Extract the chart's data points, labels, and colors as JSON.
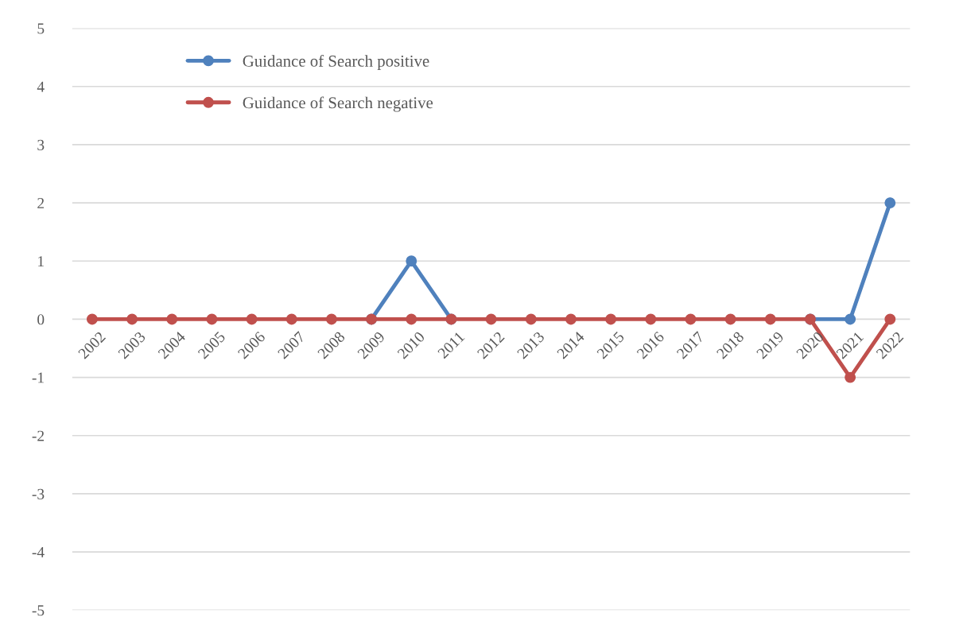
{
  "chart_data": {
    "type": "line",
    "categories": [
      "2002",
      "2003",
      "2004",
      "2005",
      "2006",
      "2007",
      "2008",
      "2009",
      "2010",
      "2011",
      "2012",
      "2013",
      "2014",
      "2015",
      "2016",
      "2017",
      "2018",
      "2019",
      "2020",
      "2021",
      "2022"
    ],
    "series": [
      {
        "name": "Guidance of Search positive",
        "color": "#4f81bd",
        "values": [
          null,
          null,
          null,
          null,
          null,
          null,
          null,
          0,
          1,
          0,
          null,
          null,
          null,
          null,
          null,
          null,
          null,
          null,
          0,
          0,
          2
        ]
      },
      {
        "name": "Guidance of Search negative",
        "color": "#c0504d",
        "values": [
          0,
          0,
          0,
          0,
          0,
          0,
          0,
          0,
          0,
          0,
          0,
          0,
          0,
          0,
          0,
          0,
          0,
          0,
          0,
          -1,
          0
        ]
      }
    ],
    "ylim": [
      -5,
      5
    ],
    "yticks": [
      -5,
      -4,
      -3,
      -2,
      -1,
      0,
      1,
      2,
      3,
      4,
      5
    ],
    "grid": "y",
    "legend": "top left",
    "marker": "circle",
    "line_style": "solid"
  }
}
